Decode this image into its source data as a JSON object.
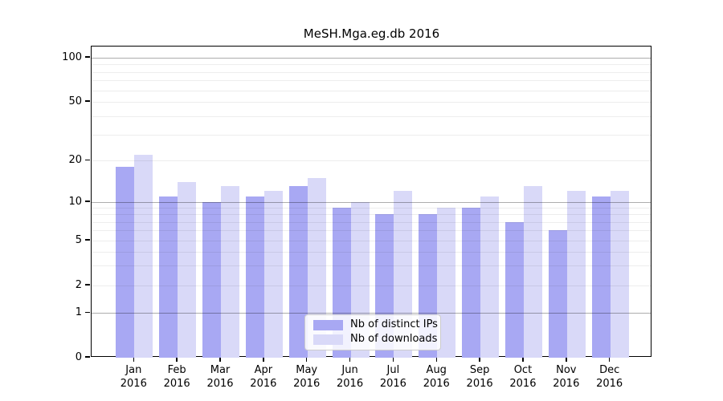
{
  "chart_data": {
    "type": "bar",
    "title": "MeSH.Mga.eg.db 2016",
    "categories": [
      "Jan",
      "Feb",
      "Mar",
      "Apr",
      "May",
      "Jun",
      "Jul",
      "Aug",
      "Sep",
      "Oct",
      "Nov",
      "Dec"
    ],
    "year_label": "2016",
    "series": [
      {
        "name": "Nb of distinct IPs",
        "color": "#a8a8f3",
        "values": [
          18,
          11,
          10,
          11,
          13,
          9,
          8,
          8,
          9,
          7,
          6,
          11
        ]
      },
      {
        "name": "Nb of downloads",
        "color": "#d9d9f8",
        "values": [
          22,
          14,
          13,
          12,
          15,
          10,
          12,
          9,
          11,
          13,
          12,
          12
        ]
      }
    ],
    "y_ticks": [
      0,
      1,
      2,
      5,
      10,
      20,
      50,
      100
    ],
    "y_minor_gridlines": [
      2,
      3,
      4,
      5,
      6,
      7,
      8,
      9,
      20,
      30,
      40,
      50,
      60,
      70,
      80,
      90
    ],
    "y_major_gridlines": [
      1,
      10,
      100
    ],
    "y_scale": "log-like (0,1,2,5,10,20,50,100)",
    "ylim": [
      0,
      110
    ],
    "grid": "horizontal",
    "legend_position": "bottom-center"
  },
  "colors": {
    "background": "#ffffff",
    "axis": "#000000",
    "bar_distinct_ips": "#a8a8f3",
    "bar_downloads": "#d9d9f8",
    "legend_border": "#cccccc"
  }
}
